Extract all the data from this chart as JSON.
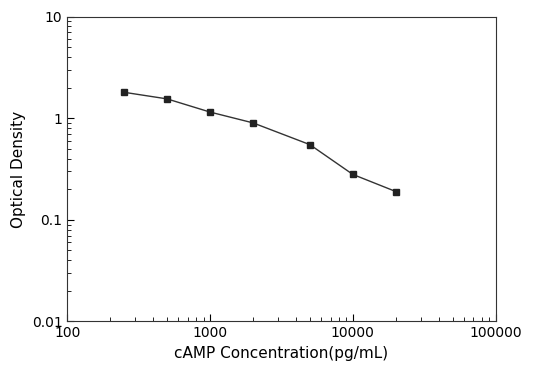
{
  "x": [
    250,
    500,
    1000,
    2000,
    5000,
    10000,
    20000
  ],
  "y": [
    1.8,
    1.55,
    1.15,
    0.9,
    0.55,
    0.28,
    0.19
  ],
  "xlabel": "cAMP Concentration(pg/mL)",
  "ylabel": "Optical Density",
  "xlim": [
    100,
    100000
  ],
  "ylim": [
    0.01,
    10
  ],
  "xticks": [
    100,
    1000,
    10000,
    100000
  ],
  "xticklabels": [
    "100",
    "1000",
    "10000",
    "100000"
  ],
  "yticks": [
    0.01,
    0.1,
    1,
    10
  ],
  "yticklabels": [
    "0.01",
    "0.1",
    "1",
    "10"
  ],
  "line_color": "#333333",
  "marker": "s",
  "marker_size": 5,
  "marker_facecolor": "#222222",
  "marker_edgecolor": "#222222",
  "line_width": 1.0,
  "background_color": "#ffffff",
  "xlabel_fontsize": 11,
  "ylabel_fontsize": 11,
  "tick_fontsize": 10
}
